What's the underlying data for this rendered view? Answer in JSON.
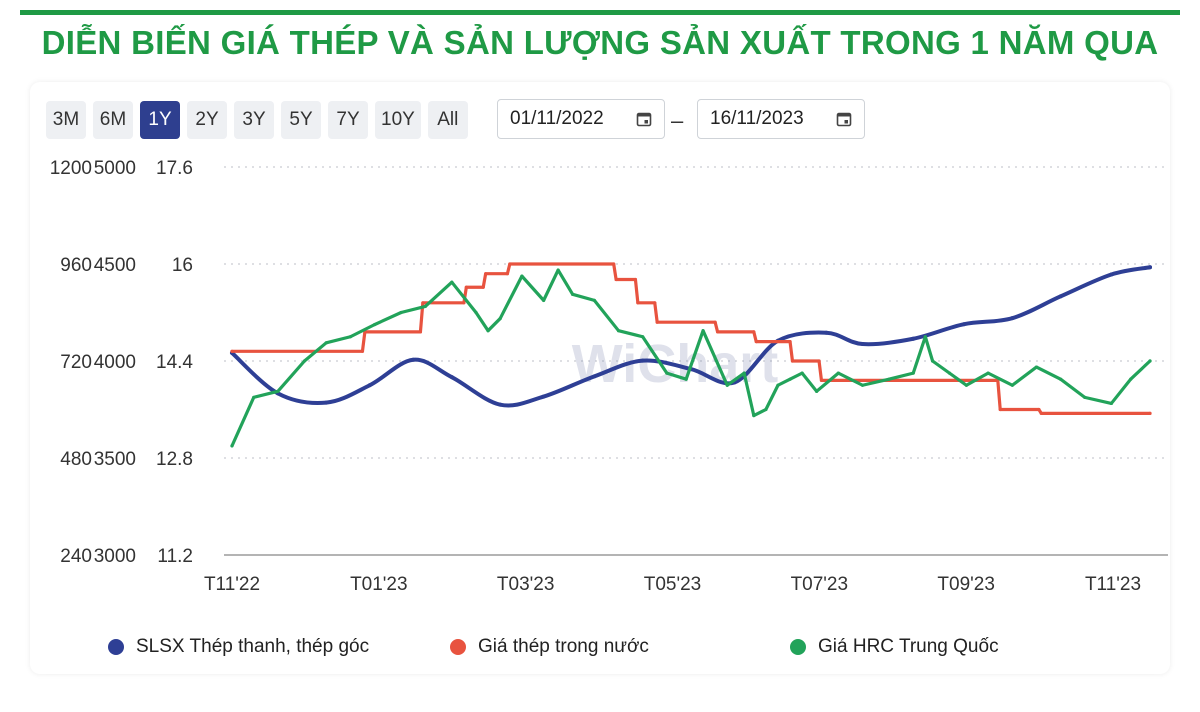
{
  "title": "DIỄN BIẾN GIÁ THÉP VÀ SẢN LƯỢNG SẢN XUẤT TRONG 1 NĂM QUA",
  "range_buttons": [
    {
      "label": "3M",
      "active": false
    },
    {
      "label": "6M",
      "active": false
    },
    {
      "label": "1Y",
      "active": true
    },
    {
      "label": "2Y",
      "active": false
    },
    {
      "label": "3Y",
      "active": false
    },
    {
      "label": "5Y",
      "active": false
    },
    {
      "label": "7Y",
      "active": false
    },
    {
      "label": "10Y",
      "active": false
    },
    {
      "label": "All",
      "active": false
    }
  ],
  "date_from": "01/11/2022",
  "date_to": "16/11/2023",
  "date_separator": "–",
  "watermark": "WiChart",
  "colors": {
    "title": "#1f9a45",
    "blue": "#2e3f95",
    "red": "#e8533f",
    "green": "#22a35a",
    "active_button": "#2e3f8f"
  },
  "chart_data": {
    "type": "line",
    "title": "",
    "x_ticks": [
      "T11'22",
      "T01'23",
      "T03'23",
      "T05'23",
      "T07'23",
      "T09'23",
      "T11'23"
    ],
    "x_range": [
      "2022-11-01",
      "2023-11-16"
    ],
    "grid": true,
    "legend_position": "bottom",
    "y_axes": [
      {
        "name": "SLSX Thép thanh, thép góc",
        "range": [
          240,
          1200
        ],
        "ticks": [
          "1200",
          "960",
          "720",
          "480",
          "240"
        ]
      },
      {
        "name": "Giá thép trong nước",
        "range": [
          3000,
          5000
        ],
        "ticks": [
          "5000",
          "4500",
          "4000",
          "3500",
          "3000"
        ]
      },
      {
        "name": "Giá HRC Trung Quốc",
        "range": [
          11.2,
          17.6
        ],
        "ticks": [
          "17.6",
          "16",
          "14.4",
          "12.8",
          "11.2"
        ]
      }
    ],
    "series": [
      {
        "name": "SLSX Thép thanh, thép góc",
        "axis": 0,
        "color": "#2e3f95",
        "x": [
          "2022-11-01",
          "2022-11-20",
          "2022-12-10",
          "2022-12-28",
          "2023-01-15",
          "2023-01-31",
          "2023-02-20",
          "2023-03-10",
          "2023-03-31",
          "2023-04-20",
          "2023-05-10",
          "2023-05-28",
          "2023-06-15",
          "2023-07-05",
          "2023-07-20",
          "2023-08-10",
          "2023-08-31",
          "2023-09-20",
          "2023-10-10",
          "2023-10-31",
          "2023-11-16"
        ],
        "y": [
          740,
          640,
          617,
          660,
          723,
          680,
          612,
          632,
          682,
          721,
          700,
          667,
          770,
          790,
          762,
          775,
          811,
          826,
          880,
          934,
          952
        ]
      },
      {
        "name": "Giá thép trong nước",
        "axis": 1,
        "color": "#e8533f",
        "x": [
          "2022-11-01",
          "2022-12-25",
          "2022-12-26",
          "2023-01-18",
          "2023-01-19",
          "2023-02-05",
          "2023-02-06",
          "2023-02-13",
          "2023-02-14",
          "2023-02-23",
          "2023-02-24",
          "2023-04-08",
          "2023-04-09",
          "2023-04-17",
          "2023-04-18",
          "2023-04-25",
          "2023-04-26",
          "2023-05-20",
          "2023-05-21",
          "2023-06-05",
          "2023-06-06",
          "2023-06-20",
          "2023-06-21",
          "2023-07-02",
          "2023-07-03",
          "2023-09-14",
          "2023-09-15",
          "2023-10-01",
          "2023-10-02",
          "2023-11-16"
        ],
        "y": [
          4050,
          4050,
          4150,
          4150,
          4300,
          4300,
          4380,
          4380,
          4450,
          4450,
          4500,
          4500,
          4420,
          4420,
          4300,
          4300,
          4200,
          4200,
          4150,
          4150,
          4100,
          4100,
          4000,
          4000,
          3900,
          3900,
          3750,
          3750,
          3730,
          3730
        ]
      },
      {
        "name": "Giá HRC Trung Quốc",
        "axis": 2,
        "color": "#22a35a",
        "x": [
          "2022-11-01",
          "2022-11-10",
          "2022-11-20",
          "2022-12-01",
          "2022-12-10",
          "2022-12-20",
          "2022-12-30",
          "2023-01-10",
          "2023-01-20",
          "2023-01-31",
          "2023-02-10",
          "2023-02-15",
          "2023-02-20",
          "2023-03-01",
          "2023-03-10",
          "2023-03-16",
          "2023-03-22",
          "2023-03-31",
          "2023-04-10",
          "2023-04-20",
          "2023-04-30",
          "2023-05-08",
          "2023-05-15",
          "2023-05-25",
          "2023-06-01",
          "2023-06-05",
          "2023-06-10",
          "2023-06-15",
          "2023-06-20",
          "2023-06-25",
          "2023-07-01",
          "2023-07-10",
          "2023-07-20",
          "2023-07-31",
          "2023-08-10",
          "2023-08-15",
          "2023-08-18",
          "2023-08-25",
          "2023-09-01",
          "2023-09-10",
          "2023-09-20",
          "2023-09-30",
          "2023-10-10",
          "2023-10-20",
          "2023-10-31",
          "2023-11-08",
          "2023-11-16"
        ],
        "y": [
          13.0,
          13.8,
          13.9,
          14.4,
          14.7,
          14.8,
          15.0,
          15.2,
          15.3,
          15.7,
          15.2,
          14.9,
          15.1,
          15.8,
          15.4,
          15.9,
          15.5,
          15.4,
          14.9,
          14.8,
          14.2,
          14.1,
          14.9,
          14.0,
          14.2,
          13.5,
          13.6,
          14.0,
          14.1,
          14.2,
          13.9,
          14.2,
          14.0,
          14.1,
          14.2,
          14.8,
          14.4,
          14.2,
          14.0,
          14.2,
          14.0,
          14.3,
          14.1,
          13.8,
          13.7,
          14.1,
          14.4
        ]
      }
    ]
  },
  "legend": [
    {
      "label": "SLSX Thép thanh, thép góc",
      "color": "#2e3f95"
    },
    {
      "label": "Giá thép trong nước",
      "color": "#e8533f"
    },
    {
      "label": "Giá HRC Trung Quốc",
      "color": "#22a35a"
    }
  ]
}
